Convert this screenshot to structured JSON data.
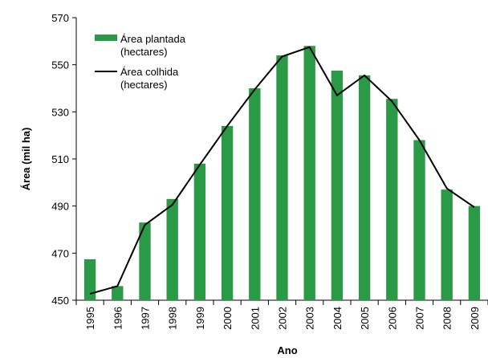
{
  "chart_data": {
    "type": "bar",
    "categories": [
      "1995",
      "1996",
      "1997",
      "1998",
      "1999",
      "2000",
      "2001",
      "2002",
      "2003",
      "2004",
      "2005",
      "2006",
      "2007",
      "2008",
      "2009"
    ],
    "series": [
      {
        "name": "Área plantada (hectares)",
        "type": "bar",
        "color": "#2a9a46",
        "values": [
          467.4,
          456,
          483,
          493,
          508,
          524,
          540,
          554,
          558,
          547.5,
          545.5,
          535.5,
          518,
          497,
          490
        ]
      },
      {
        "name": "Área colhida (hectares)",
        "type": "line",
        "color": "#000000",
        "values": [
          452.7,
          456,
          482,
          490.5,
          507.5,
          524,
          539.5,
          553.5,
          557.5,
          537,
          545.5,
          534.5,
          518,
          497.5,
          489.5
        ]
      }
    ],
    "xlabel": "Ano",
    "ylabel": "Área (mil ha)",
    "ylim": [
      450,
      570
    ],
    "yticks": [
      450,
      470,
      490,
      510,
      530,
      550,
      570
    ],
    "legend": "upper left"
  }
}
